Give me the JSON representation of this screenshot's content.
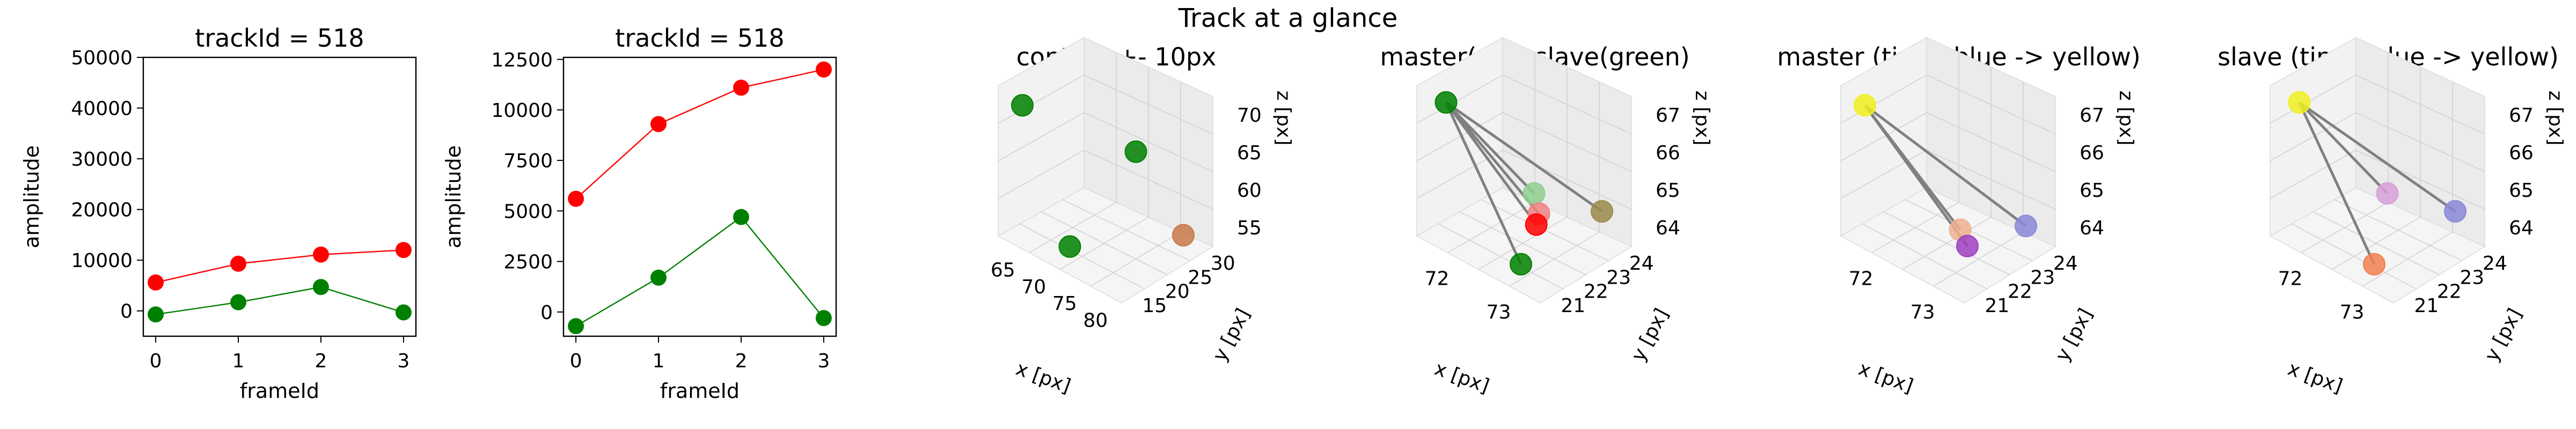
{
  "figure_title": "Track at a glance",
  "colors": {
    "master": "#ff0000",
    "slave": "#008000",
    "ghost_line": "#808080"
  },
  "chart_data": [
    {
      "type": "line",
      "title": "trackId = 518",
      "xlabel": "frameId",
      "ylabel": "amplitude",
      "x": [
        0,
        1,
        2,
        3
      ],
      "xticks": [
        "0",
        "1",
        "2",
        "3"
      ],
      "ylim": [
        -5000,
        50000
      ],
      "yticks": [
        0,
        10000,
        20000,
        30000,
        40000,
        50000
      ],
      "ytick_labels": [
        "0",
        "10000",
        "20000",
        "30000",
        "40000",
        "50000"
      ],
      "series": [
        {
          "color": "#ff0000",
          "values": [
            5600,
            9300,
            11100,
            12000
          ]
        },
        {
          "color": "#008000",
          "values": [
            -700,
            1700,
            4700,
            -300
          ]
        }
      ]
    },
    {
      "type": "line",
      "title": "trackId = 518",
      "xlabel": "frameId",
      "ylabel": "amplitude",
      "x": [
        0,
        1,
        2,
        3
      ],
      "xticks": [
        "0",
        "1",
        "2",
        "3"
      ],
      "ylim": [
        -1200,
        12600
      ],
      "yticks": [
        0,
        2500,
        5000,
        7500,
        10000,
        12500
      ],
      "ytick_labels": [
        "0",
        "2500",
        "5000",
        "7500",
        "10000",
        "12500"
      ],
      "series": [
        {
          "color": "#ff0000",
          "values": [
            5600,
            9300,
            11100,
            12000
          ]
        },
        {
          "color": "#008000",
          "values": [
            -700,
            1700,
            4700,
            -300
          ]
        }
      ]
    },
    {
      "type": "scatter",
      "title": "context +- 10px",
      "xlabel": "x [px]",
      "ylabel": "y [px]",
      "zlabel": "z [px]",
      "xticks": [
        "65",
        "70",
        "75",
        "80"
      ],
      "yticks": [
        "15",
        "20",
        "25",
        "30"
      ],
      "zticks": [
        "55",
        "60",
        "65",
        "70"
      ],
      "points": [
        {
          "x": 72,
          "y": 22,
          "z": 66,
          "color": "#008000"
        },
        {
          "x": 73,
          "y": 23,
          "z": 65,
          "color": "#008000"
        },
        {
          "x": 74,
          "y": 23,
          "z": 64,
          "color": "#c8784a"
        },
        {
          "x": 73,
          "y": 22,
          "z": 64,
          "color": "#008000"
        }
      ]
    },
    {
      "type": "scatter",
      "title": "master(red) slave(green)",
      "xlabel": "x [px]",
      "ylabel": "y [px]",
      "zlabel": "z [px]",
      "xticks": [
        "72",
        "73"
      ],
      "yticks": [
        "21",
        "22",
        "23",
        "24"
      ],
      "zticks": [
        "64",
        "65",
        "66",
        "67"
      ],
      "points": [
        {
          "x": 71.6,
          "y": 21.2,
          "z": 66.9,
          "color": "#008000"
        },
        {
          "x": 72.7,
          "y": 22.5,
          "z": 64.9,
          "color": "#8fd08f"
        },
        {
          "x": 72.9,
          "y": 22.3,
          "z": 64.6,
          "color": "#f08080"
        },
        {
          "x": 73.0,
          "y": 22.0,
          "z": 64.5,
          "color": "#ff0000"
        },
        {
          "x": 73.5,
          "y": 23.6,
          "z": 64.6,
          "color": "#9a8a4a"
        },
        {
          "x": 73.2,
          "y": 21.0,
          "z": 64.0,
          "color": "#008000"
        }
      ]
    },
    {
      "type": "scatter",
      "title": "master (time: blue -> yellow)",
      "xlabel": "x [px]",
      "ylabel": "y [px]",
      "zlabel": "z [px]",
      "xticks": [
        "72",
        "73"
      ],
      "yticks": [
        "21",
        "22",
        "23",
        "24"
      ],
      "zticks": [
        "64",
        "65",
        "66",
        "67"
      ],
      "points": [
        {
          "x": 71.6,
          "y": 21.2,
          "z": 66.9,
          "color": "#f0f020"
        },
        {
          "x": 72.9,
          "y": 22.3,
          "z": 64.6,
          "color": "#f0b090"
        },
        {
          "x": 73.1,
          "y": 22.2,
          "z": 64.4,
          "color": "#a040c0"
        },
        {
          "x": 73.5,
          "y": 23.6,
          "z": 64.6,
          "color": "#8a88d8"
        }
      ]
    },
    {
      "type": "scatter",
      "title": "slave (time: blue -> yellow)",
      "xlabel": "x [px]",
      "ylabel": "y [px]",
      "zlabel": "z [px]",
      "xticks": [
        "72",
        "73"
      ],
      "yticks": [
        "21",
        "22",
        "23",
        "24"
      ],
      "zticks": [
        "64",
        "65",
        "66",
        "67"
      ],
      "points": [
        {
          "x": 71.6,
          "y": 21.2,
          "z": 66.9,
          "color": "#f0f020"
        },
        {
          "x": 72.7,
          "y": 22.5,
          "z": 64.9,
          "color": "#d8a0d8"
        },
        {
          "x": 73.5,
          "y": 23.6,
          "z": 64.6,
          "color": "#8a88d8"
        },
        {
          "x": 73.2,
          "y": 21.0,
          "z": 64.0,
          "color": "#f08050"
        }
      ]
    }
  ]
}
